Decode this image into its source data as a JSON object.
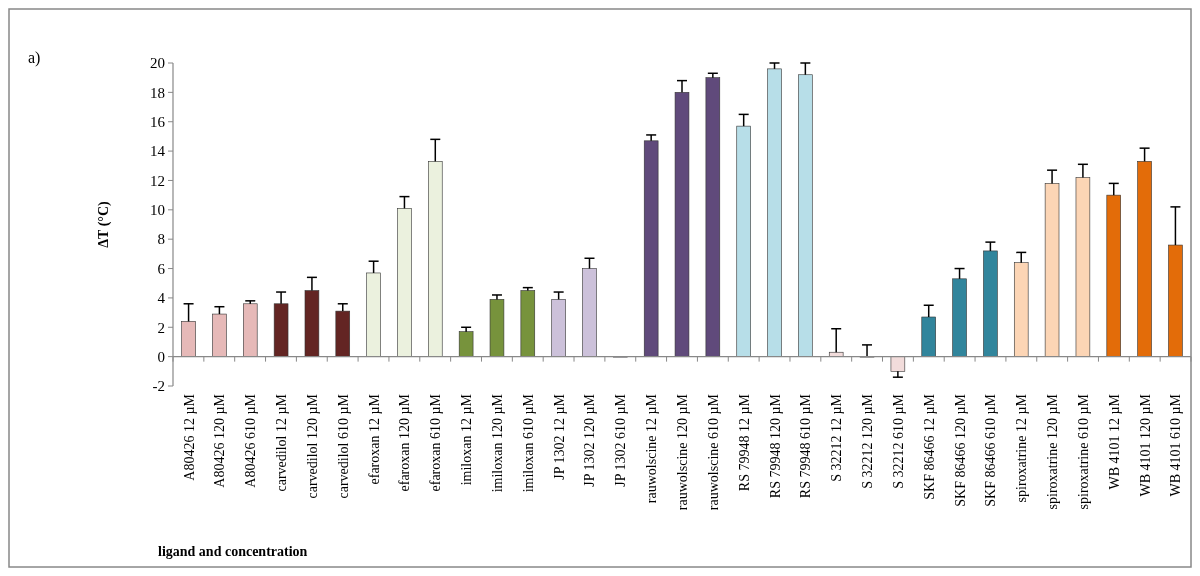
{
  "chart_data": {
    "type": "bar",
    "ylabel": "ΔT (°C)",
    "xlabel": "ligand and concentration",
    "annotations": [
      "a)"
    ],
    "categories": [
      "A80426 12 µM",
      "A80426 120 µM",
      "A80426 610 µM",
      "carvedilol 12 µM",
      "carvedilol 120 µM",
      "carvedilol 610 µM",
      "efaroxan 12 µM",
      "efaroxan 120 µM",
      "efaroxan 610 µM",
      "imiloxan 12 µM",
      "imiloxan 120 µM",
      "imiloxan 610 µM",
      "JP 1302 12 µM",
      "JP 1302 120 µM",
      "JP 1302 610 µM",
      "rauwolscine 12 µM",
      "rauwolscine 120 µM",
      "rauwolscine 610 µM",
      "RS 79948 12 µM",
      "RS 79948 120 µM",
      "RS 79948 610 µM",
      "S 32212 12 µM",
      "S 32212 120 µM",
      "S 32212 610 µM",
      "SKF 86466 12 µM",
      "SKF 86466 120 µM",
      "SKF 86466 610 µM",
      "spiroxatrine 12 µM",
      "spiroxatrine 120 µM",
      "spiroxatrine 610 µM",
      "WB 4101 12 µM",
      "WB 4101 120 µM",
      "WB 4101 610 µM"
    ],
    "values": [
      2.4,
      2.9,
      3.6,
      3.6,
      4.5,
      3.1,
      5.7,
      10.1,
      13.3,
      1.7,
      3.9,
      4.5,
      3.9,
      6.0,
      0,
      14.7,
      18.0,
      19.0,
      15.7,
      19.6,
      19.2,
      0.3,
      0,
      -1.0,
      2.7,
      5.3,
      7.2,
      6.4,
      11.8,
      12.2,
      11.0,
      13.3,
      7.6
    ],
    "errors": [
      [
        2.4,
        3.6
      ],
      [
        2.9,
        3.4
      ],
      [
        3.6,
        3.8
      ],
      [
        3.6,
        4.4
      ],
      [
        4.5,
        5.4
      ],
      [
        3.1,
        3.6
      ],
      [
        5.7,
        6.5
      ],
      [
        10.1,
        10.9
      ],
      [
        13.3,
        14.8
      ],
      [
        1.7,
        2.0
      ],
      [
        3.9,
        4.2
      ],
      [
        4.5,
        4.7
      ],
      [
        3.9,
        4.4
      ],
      [
        6.0,
        6.7
      ],
      null,
      [
        14.7,
        15.1
      ],
      [
        18.0,
        18.8
      ],
      [
        19.0,
        19.3
      ],
      [
        15.7,
        16.5
      ],
      [
        19.6,
        20.0
      ],
      [
        19.2,
        20.0
      ],
      [
        0.3,
        1.9
      ],
      [
        0,
        0.8
      ],
      [
        -1.4,
        -1.0
      ],
      [
        2.7,
        3.5
      ],
      [
        5.3,
        6.0
      ],
      [
        7.2,
        7.8
      ],
      [
        6.4,
        7.1
      ],
      [
        11.8,
        12.7
      ],
      [
        12.2,
        13.1
      ],
      [
        11.0,
        11.8
      ],
      [
        13.3,
        14.2
      ],
      [
        7.6,
        10.2
      ]
    ],
    "colors": [
      "#e6b9b8",
      "#e6b9b8",
      "#e6b9b8",
      "#632523",
      "#632523",
      "#632523",
      "#ebf1de",
      "#ebf1de",
      "#ebf1de",
      "#77933c",
      "#77933c",
      "#77933c",
      "#ccc1da",
      "#ccc1da",
      "#ccc1da",
      "#604a7b",
      "#604a7b",
      "#604a7b",
      "#b7dee8",
      "#b7dee8",
      "#b7dee8",
      "#f2dcdb",
      "#f2dcdb",
      "#f2dcdb",
      "#31859c",
      "#31859c",
      "#31859c",
      "#fcd5b5",
      "#fcd5b5",
      "#fcd5b5",
      "#e36c09",
      "#e36c09",
      "#e36c09"
    ],
    "ylim": [
      -2,
      20
    ],
    "yticks": [
      -2,
      0,
      2,
      4,
      6,
      8,
      10,
      12,
      14,
      16,
      18,
      20
    ]
  }
}
